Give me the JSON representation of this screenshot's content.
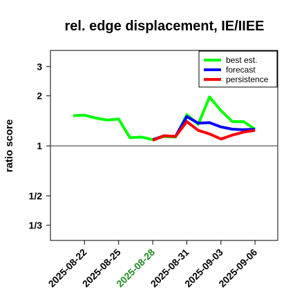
{
  "chart_data": {
    "type": "line",
    "title": "rel. edge displacement, IE/IIEE",
    "xlabel": "",
    "ylabel": "ratio score",
    "y_scale": "log",
    "ylim": [
      0.27,
      3.75
    ],
    "y_ticks": [
      {
        "value": 0.3333,
        "label": "1/3"
      },
      {
        "value": 0.5,
        "label": "1/2"
      },
      {
        "value": 1,
        "label": "1"
      },
      {
        "value": 2,
        "label": "2"
      },
      {
        "value": 3,
        "label": "3"
      }
    ],
    "reference_line": 1,
    "x_range": [
      "2025-08-19",
      "2025-09-08"
    ],
    "x_ticks": [
      "2025-08-22",
      "2025-08-25",
      "2025-08-28",
      "2025-08-31",
      "2025-09-03",
      "2025-09-06"
    ],
    "highlighted_x_tick": "2025-08-28",
    "highlight_color": "#228b22",
    "legend_position": "top-right",
    "series": [
      {
        "name": "best est.",
        "color": "#00ff00",
        "x": [
          "2025-08-21",
          "2025-08-22",
          "2025-08-23",
          "2025-08-24",
          "2025-08-25",
          "2025-08-26",
          "2025-08-27",
          "2025-08-28",
          "2025-08-29",
          "2025-08-30",
          "2025-08-31",
          "2025-09-01",
          "2025-09-02",
          "2025-09-03",
          "2025-09-04",
          "2025-09-05",
          "2025-09-06"
        ],
        "values": [
          1.52,
          1.53,
          1.47,
          1.43,
          1.45,
          1.12,
          1.13,
          1.09,
          1.14,
          1.13,
          1.54,
          1.35,
          1.97,
          1.63,
          1.4,
          1.4,
          1.26
        ]
      },
      {
        "name": "forecast",
        "color": "#0000ff",
        "x": [
          "2025-08-28",
          "2025-08-29",
          "2025-08-30",
          "2025-08-31",
          "2025-09-01",
          "2025-09-02",
          "2025-09-03",
          "2025-09-04",
          "2025-09-05",
          "2025-09-06"
        ],
        "values": [
          1.09,
          1.15,
          1.14,
          1.5,
          1.37,
          1.38,
          1.3,
          1.26,
          1.25,
          1.26
        ]
      },
      {
        "name": "persistence",
        "color": "#ff0000",
        "x": [
          "2025-08-28",
          "2025-08-29",
          "2025-08-30",
          "2025-08-31",
          "2025-09-01",
          "2025-09-02",
          "2025-09-03",
          "2025-09-04",
          "2025-09-05",
          "2025-09-06"
        ],
        "values": [
          1.08,
          1.15,
          1.14,
          1.4,
          1.24,
          1.18,
          1.1,
          1.16,
          1.21,
          1.24
        ]
      }
    ]
  }
}
